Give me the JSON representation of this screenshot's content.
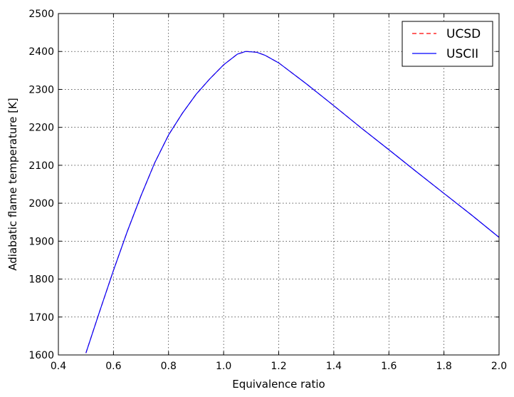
{
  "chart_data": {
    "type": "line",
    "title": "",
    "xlabel": "Equivalence ratio",
    "ylabel": "Adiabatic flame temperature [K]",
    "xlim": [
      0.4,
      2.0
    ],
    "ylim": [
      1600,
      2500
    ],
    "xticks": [
      0.4,
      0.6,
      0.8,
      1.0,
      1.2,
      1.4,
      1.6,
      1.8,
      2.0
    ],
    "xtick_labels": [
      "0.4",
      "0.6",
      "0.8",
      "1.0",
      "1.2",
      "1.4",
      "1.6",
      "1.8",
      "2.0"
    ],
    "yticks": [
      1600,
      1700,
      1800,
      1900,
      2000,
      2100,
      2200,
      2300,
      2400,
      2500
    ],
    "ytick_labels": [
      "1600",
      "1700",
      "1800",
      "1900",
      "2000",
      "2100",
      "2200",
      "2300",
      "2400",
      "2500"
    ],
    "grid": true,
    "legend": "top-right",
    "series": [
      {
        "name": "UCSD",
        "color": "#ff0000",
        "style": "dashed",
        "x": [
          0.5,
          0.55,
          0.6,
          0.65,
          0.7,
          0.75,
          0.8,
          0.85,
          0.9,
          0.95,
          1.0,
          1.05,
          1.08,
          1.12,
          1.15,
          1.2,
          1.3,
          1.4,
          1.5,
          1.6,
          1.7,
          1.8,
          1.9,
          2.0
        ],
        "y": [
          1605,
          1715,
          1823,
          1925,
          2020,
          2107,
          2180,
          2237,
          2287,
          2328,
          2365,
          2393,
          2400,
          2398,
          2390,
          2370,
          2315,
          2257,
          2198,
          2141,
          2083,
          2026,
          1969,
          1910
        ]
      },
      {
        "name": "USCII",
        "color": "#0000ff",
        "style": "solid",
        "x": [
          0.5,
          0.55,
          0.6,
          0.65,
          0.7,
          0.75,
          0.8,
          0.85,
          0.9,
          0.95,
          1.0,
          1.05,
          1.08,
          1.12,
          1.15,
          1.2,
          1.3,
          1.4,
          1.5,
          1.6,
          1.7,
          1.8,
          1.9,
          2.0
        ],
        "y": [
          1605,
          1715,
          1823,
          1925,
          2020,
          2107,
          2180,
          2237,
          2287,
          2328,
          2365,
          2393,
          2400,
          2398,
          2390,
          2370,
          2315,
          2257,
          2198,
          2141,
          2083,
          2026,
          1969,
          1910
        ]
      }
    ]
  }
}
